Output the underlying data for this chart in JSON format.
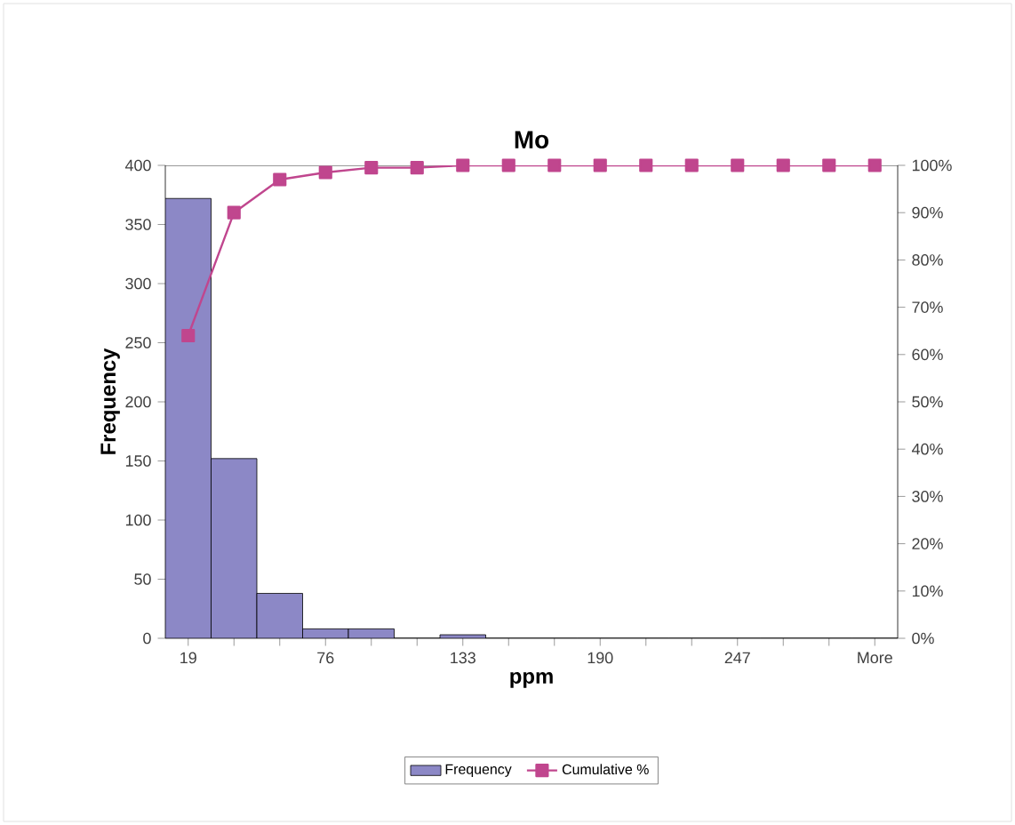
{
  "chart_data": {
    "type": "bar",
    "title": "Mo",
    "xlabel": "ppm",
    "ylabel": "Frequency",
    "categories": [
      "19",
      null,
      null,
      "76",
      null,
      null,
      "133",
      null,
      null,
      "190",
      null,
      null,
      "247",
      null,
      null,
      "More"
    ],
    "series": [
      {
        "name": "Frequency",
        "color": "#8c88c6",
        "values": [
          372,
          152,
          38,
          8,
          8,
          0,
          3,
          0,
          0,
          0,
          0,
          0,
          0,
          0,
          0,
          0
        ]
      },
      {
        "name": "Cumulative %",
        "type": "line",
        "axis": "y2",
        "color": "#c0468e",
        "values": [
          64,
          90,
          97,
          98.5,
          99.5,
          99.5,
          100,
          100,
          100,
          100,
          100,
          100,
          100,
          100,
          100,
          100
        ]
      }
    ],
    "ylim": [
      0,
      400
    ],
    "yticks": [
      0,
      50,
      100,
      150,
      200,
      250,
      300,
      350,
      400
    ],
    "y2lim": [
      0,
      100
    ],
    "y2ticks": [
      {
        "value": 0,
        "label": "0%"
      },
      {
        "value": 10,
        "label": "10%"
      },
      {
        "value": 20,
        "label": "20%"
      },
      {
        "value": 30,
        "label": "30%"
      },
      {
        "value": 40,
        "label": "40%"
      },
      {
        "value": 50,
        "label": "50%"
      },
      {
        "value": 60,
        "label": "60%"
      },
      {
        "value": 70,
        "label": "70%"
      },
      {
        "value": 80,
        "label": "80%"
      },
      {
        "value": 90,
        "label": "90%"
      },
      {
        "value": 100,
        "label": "100%"
      }
    ],
    "legend": "bottom",
    "marker": "square"
  }
}
